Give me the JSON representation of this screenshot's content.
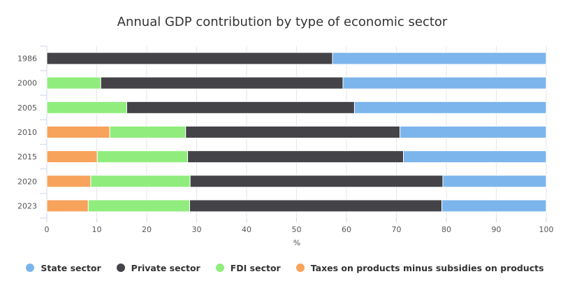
{
  "chart_data": {
    "type": "bar",
    "orientation": "horizontal",
    "stacked": true,
    "title": "Annual GDP contribution by type of economic sector",
    "xlabel": "%",
    "ylabel": "",
    "xlim": [
      0,
      100
    ],
    "x_ticks": [
      "0",
      "10",
      "20",
      "30",
      "40",
      "50",
      "60",
      "70",
      "80",
      "90",
      "100"
    ],
    "categories": [
      "1986",
      "2000",
      "2005",
      "2010",
      "2015",
      "2020",
      "2023"
    ],
    "series": [
      {
        "name": "Taxes on products minus subsidies on products",
        "color": "#f7a35c",
        "values": [
          0,
          0,
          0,
          12.6,
          10.1,
          8.8,
          8.3
        ]
      },
      {
        "name": "FDI sector",
        "color": "#90ed7d",
        "values": [
          0,
          10.8,
          16.0,
          15.2,
          18.1,
          19.9,
          20.3
        ]
      },
      {
        "name": "Private sector",
        "color": "#434348",
        "values": [
          57.2,
          48.5,
          45.6,
          42.9,
          43.2,
          50.6,
          50.5
        ]
      },
      {
        "name": "State sector",
        "color": "#7cb5ec",
        "values": [
          42.8,
          40.7,
          38.4,
          29.3,
          28.6,
          20.7,
          20.9
        ]
      }
    ],
    "legend": {
      "position": "bottom",
      "order": [
        "State sector",
        "Private sector",
        "FDI sector",
        "Taxes on products minus subsidies on products"
      ]
    },
    "grid": true
  }
}
